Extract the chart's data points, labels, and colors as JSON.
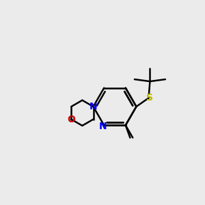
{
  "bg_color": "#ebebeb",
  "bond_color": "#000000",
  "N_color": "#0000ff",
  "O_color": "#cc0000",
  "S_color": "#b8b800",
  "line_width": 1.8,
  "figsize": [
    3.0,
    3.0
  ],
  "dpi": 100,
  "xlim": [
    0,
    10
  ],
  "ylim": [
    0,
    10
  ]
}
